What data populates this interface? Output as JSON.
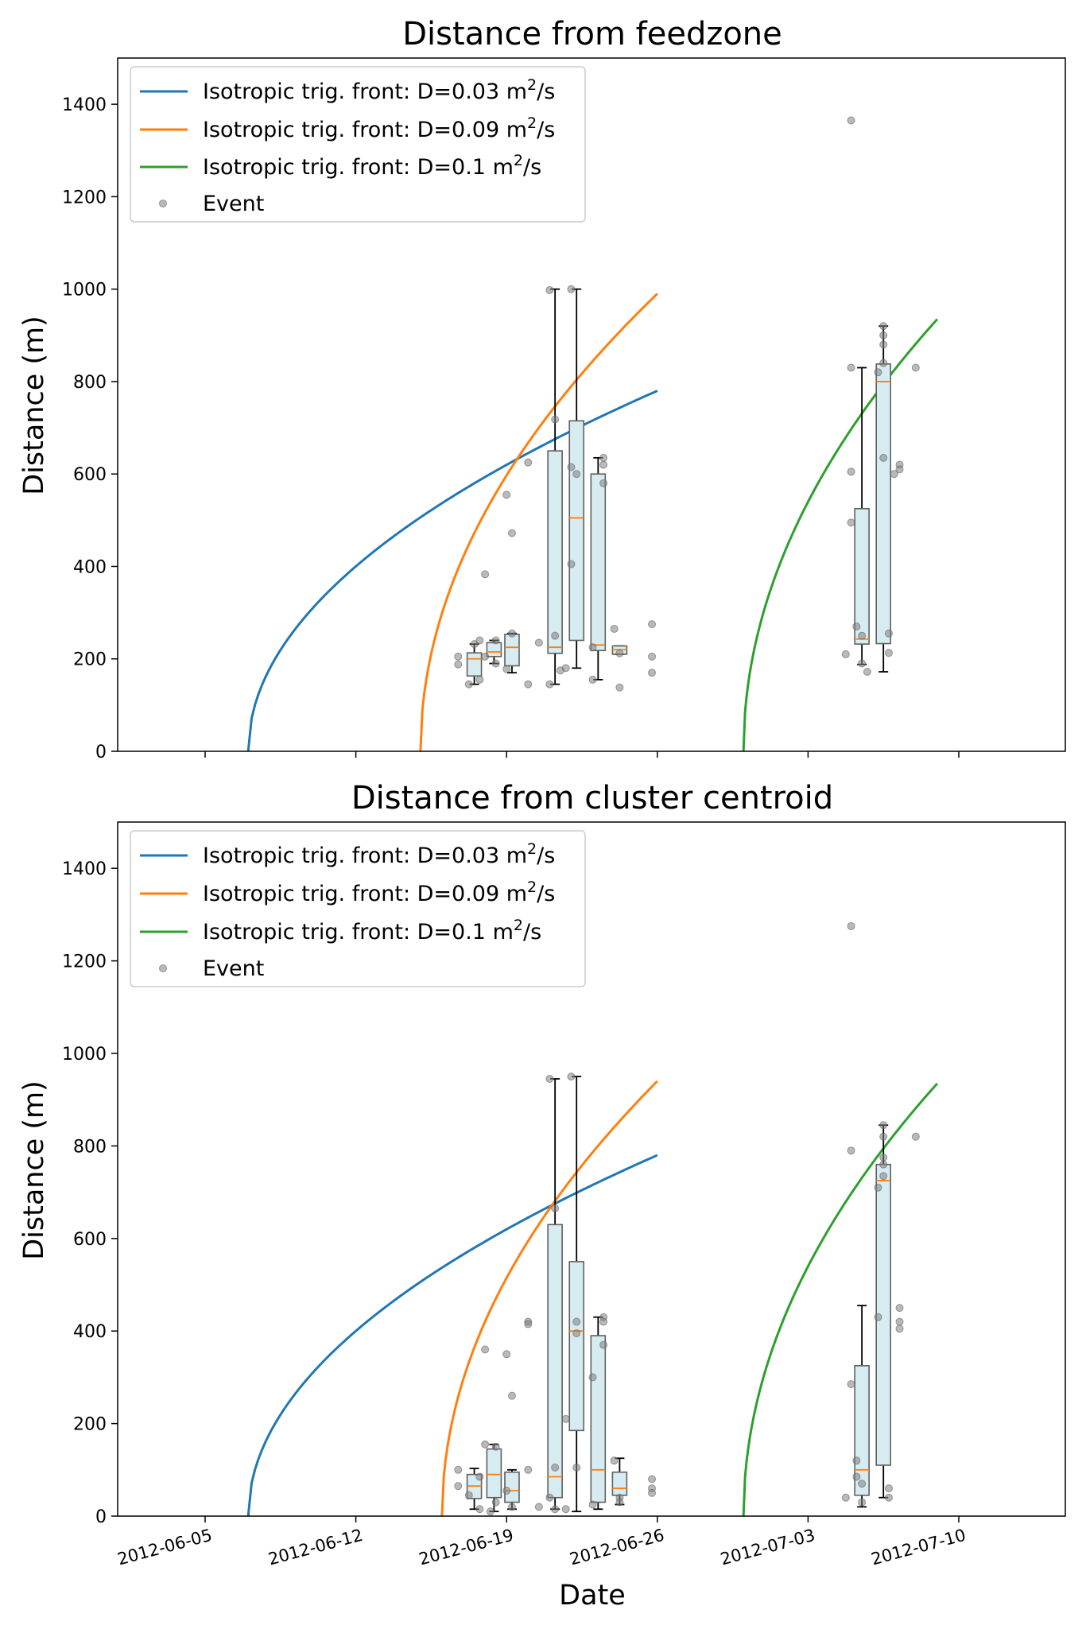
{
  "figure": {
    "xlabel": "Date",
    "x_ticks": [
      "2012-06-05",
      "2012-06-12",
      "2012-06-19",
      "2012-06-26",
      "2012-07-03",
      "2012-07-10"
    ],
    "x_tick_dates": [
      "2012-06-05",
      "2012-06-12",
      "2012-06-19",
      "2012-06-26",
      "2012-07-03",
      "2012-07-10"
    ]
  },
  "chart_data": [
    {
      "type": "line+box+scatter",
      "title": "Distance from feedzone",
      "ylabel": "Distance (m)",
      "xlabel": "",
      "xlim": [
        "2012-06-01",
        "2012-07-15"
      ],
      "ylim": [
        0,
        1500
      ],
      "y_ticks": [
        "0",
        "200",
        "400",
        "600",
        "800",
        "1000",
        "1200",
        "1400"
      ],
      "legend_position": "upper-left",
      "series": [
        {
          "name": "Isotropic trig. front: D=0.03 m²/s",
          "label_main": "Isotropic trig. front: D=0.03 m",
          "label_sup": "2",
          "label_tail": "/s",
          "color": "#1f77b4",
          "start": "2012-06-07",
          "end": "2012-06-26",
          "y_end": 780
        },
        {
          "name": "Isotropic trig. front: D=0.09 m²/s",
          "label_main": "Isotropic trig. front: D=0.09 m",
          "label_sup": "2",
          "label_tail": "/s",
          "color": "#ff7f0e",
          "start": "2012-06-15",
          "end": "2012-06-26",
          "y_end": 990
        },
        {
          "name": "Isotropic trig. front: D=0.1 m²/s",
          "label_main": "Isotropic trig. front: D=0.1 m",
          "label_sup": "2",
          "label_tail": "/s",
          "color": "#2ca02c",
          "start": "2012-06-30",
          "end": "2012-07-09",
          "y_end": 935
        }
      ],
      "event_legend": "Event",
      "event_color": "#808080",
      "boxes": [
        {
          "x": "2012-06-17 12:00",
          "q1": 163,
          "median": 200,
          "q3": 213,
          "whislo": 145,
          "whishi": 232
        },
        {
          "x": "2012-06-18 10:00",
          "q1": 205,
          "median": 215,
          "q3": 235,
          "whislo": 190,
          "whishi": 240
        },
        {
          "x": "2012-06-19 06:00",
          "q1": 185,
          "median": 225,
          "q3": 253,
          "whislo": 170,
          "whishi": 255
        },
        {
          "x": "2012-06-21 06:00",
          "q1": 212,
          "median": 225,
          "q3": 650,
          "whislo": 145,
          "whishi": 1000
        },
        {
          "x": "2012-06-22 06:00",
          "q1": 240,
          "median": 505,
          "q3": 715,
          "whislo": 180,
          "whishi": 1000
        },
        {
          "x": "2012-06-23 06:00",
          "q1": 218,
          "median": 230,
          "q3": 600,
          "whislo": 155,
          "whishi": 635
        },
        {
          "x": "2012-06-24 06:00",
          "q1": 210,
          "median": 220,
          "q3": 228,
          "whislo": 210,
          "whishi": 228
        },
        {
          "x": "2012-07-05 12:00",
          "q1": 232,
          "median": 243,
          "q3": 525,
          "whislo": 188,
          "whishi": 830
        },
        {
          "x": "2012-07-06 12:00",
          "q1": 233,
          "median": 800,
          "q3": 838,
          "whislo": 172,
          "whishi": 920
        }
      ],
      "events": [
        {
          "x": "2012-06-16 18:00",
          "y": 205
        },
        {
          "x": "2012-06-16 18:00",
          "y": 188
        },
        {
          "x": "2012-06-17 06:00",
          "y": 145
        },
        {
          "x": "2012-06-17 12:00",
          "y": 232
        },
        {
          "x": "2012-06-17 18:00",
          "y": 155
        },
        {
          "x": "2012-06-17 18:00",
          "y": 240
        },
        {
          "x": "2012-06-18 00:00",
          "y": 383
        },
        {
          "x": "2012-06-18 00:00",
          "y": 205
        },
        {
          "x": "2012-06-18 12:00",
          "y": 240
        },
        {
          "x": "2012-06-18 12:00",
          "y": 190
        },
        {
          "x": "2012-06-19 00:00",
          "y": 555
        },
        {
          "x": "2012-06-19 00:00",
          "y": 178
        },
        {
          "x": "2012-06-19 06:00",
          "y": 472
        },
        {
          "x": "2012-06-19 06:00",
          "y": 255
        },
        {
          "x": "2012-06-20 00:00",
          "y": 625
        },
        {
          "x": "2012-06-20 00:00",
          "y": 145
        },
        {
          "x": "2012-06-20 12:00",
          "y": 235
        },
        {
          "x": "2012-06-21 00:00",
          "y": 998
        },
        {
          "x": "2012-06-21 06:00",
          "y": 718
        },
        {
          "x": "2012-06-21 06:00",
          "y": 250
        },
        {
          "x": "2012-06-21 00:00",
          "y": 145
        },
        {
          "x": "2012-06-21 12:00",
          "y": 175
        },
        {
          "x": "2012-06-22 00:00",
          "y": 1000
        },
        {
          "x": "2012-06-22 00:00",
          "y": 615
        },
        {
          "x": "2012-06-22 06:00",
          "y": 600
        },
        {
          "x": "2012-06-22 00:00",
          "y": 405
        },
        {
          "x": "2012-06-21 18:00",
          "y": 180
        },
        {
          "x": "2012-06-23 00:00",
          "y": 225
        },
        {
          "x": "2012-06-23 00:00",
          "y": 155
        },
        {
          "x": "2012-06-23 12:00",
          "y": 635
        },
        {
          "x": "2012-06-23 12:00",
          "y": 620
        },
        {
          "x": "2012-06-23 12:00",
          "y": 580
        },
        {
          "x": "2012-06-24 00:00",
          "y": 265
        },
        {
          "x": "2012-06-24 06:00",
          "y": 138
        },
        {
          "x": "2012-06-24 06:00",
          "y": 212
        },
        {
          "x": "2012-06-25 18:00",
          "y": 275
        },
        {
          "x": "2012-06-25 18:00",
          "y": 205
        },
        {
          "x": "2012-06-25 18:00",
          "y": 170
        },
        {
          "x": "2012-07-04 18:00",
          "y": 210
        },
        {
          "x": "2012-07-05 00:00",
          "y": 1365
        },
        {
          "x": "2012-07-05 00:00",
          "y": 830
        },
        {
          "x": "2012-07-05 00:00",
          "y": 605
        },
        {
          "x": "2012-07-05 00:00",
          "y": 495
        },
        {
          "x": "2012-07-05 06:00",
          "y": 270
        },
        {
          "x": "2012-07-05 12:00",
          "y": 250
        },
        {
          "x": "2012-07-05 18:00",
          "y": 172
        },
        {
          "x": "2012-07-05 12:00",
          "y": 190
        },
        {
          "x": "2012-07-06 12:00",
          "y": 920
        },
        {
          "x": "2012-07-06 12:00",
          "y": 900
        },
        {
          "x": "2012-07-06 12:00",
          "y": 880
        },
        {
          "x": "2012-07-06 12:00",
          "y": 840
        },
        {
          "x": "2012-07-06 06:00",
          "y": 820
        },
        {
          "x": "2012-07-06 12:00",
          "y": 635
        },
        {
          "x": "2012-07-06 18:00",
          "y": 255
        },
        {
          "x": "2012-07-06 18:00",
          "y": 213
        },
        {
          "x": "2012-07-07 06:00",
          "y": 620
        },
        {
          "x": "2012-07-07 06:00",
          "y": 610
        },
        {
          "x": "2012-07-07 00:00",
          "y": 600
        },
        {
          "x": "2012-07-08 00:00",
          "y": 830
        }
      ]
    },
    {
      "type": "line+box+scatter",
      "title": "Distance from cluster centroid",
      "ylabel": "Distance (m)",
      "xlabel": "Date",
      "xlim": [
        "2012-06-01",
        "2012-07-15"
      ],
      "ylim": [
        0,
        1500
      ],
      "y_ticks": [
        "0",
        "200",
        "400",
        "600",
        "800",
        "1000",
        "1200",
        "1400"
      ],
      "legend_position": "upper-left",
      "series": [
        {
          "name": "Isotropic trig. front: D=0.03 m²/s",
          "label_main": "Isotropic trig. front: D=0.03 m",
          "label_sup": "2",
          "label_tail": "/s",
          "color": "#1f77b4",
          "start": "2012-06-07",
          "end": "2012-06-26",
          "y_end": 780
        },
        {
          "name": "Isotropic trig. front: D=0.09 m²/s",
          "label_main": "Isotropic trig. front: D=0.09 m",
          "label_sup": "2",
          "label_tail": "/s",
          "color": "#ff7f0e",
          "start": "2012-06-16",
          "end": "2012-06-26",
          "y_end": 940
        },
        {
          "name": "Isotropic trig. front: D=0.1 m²/s",
          "label_main": "Isotropic trig. front: D=0.1 m",
          "label_sup": "2",
          "label_tail": "/s",
          "color": "#2ca02c",
          "start": "2012-06-30",
          "end": "2012-07-09",
          "y_end": 935
        }
      ],
      "event_legend": "Event",
      "event_color": "#808080",
      "boxes": [
        {
          "x": "2012-06-17 12:00",
          "q1": 38,
          "median": 65,
          "q3": 90,
          "whislo": 15,
          "whishi": 103
        },
        {
          "x": "2012-06-18 10:00",
          "q1": 40,
          "median": 90,
          "q3": 145,
          "whislo": 10,
          "whishi": 155
        },
        {
          "x": "2012-06-19 06:00",
          "q1": 30,
          "median": 55,
          "q3": 95,
          "whislo": 15,
          "whishi": 100
        },
        {
          "x": "2012-06-21 06:00",
          "q1": 40,
          "median": 85,
          "q3": 630,
          "whislo": 15,
          "whishi": 945
        },
        {
          "x": "2012-06-22 06:00",
          "q1": 185,
          "median": 400,
          "q3": 550,
          "whislo": 10,
          "whishi": 950
        },
        {
          "x": "2012-06-23 06:00",
          "q1": 30,
          "median": 100,
          "q3": 390,
          "whislo": 15,
          "whishi": 430
        },
        {
          "x": "2012-06-24 06:00",
          "q1": 45,
          "median": 60,
          "q3": 95,
          "whislo": 25,
          "whishi": 125
        },
        {
          "x": "2012-07-05 12:00",
          "q1": 45,
          "median": 100,
          "q3": 325,
          "whislo": 20,
          "whishi": 455
        },
        {
          "x": "2012-07-06 12:00",
          "q1": 110,
          "median": 725,
          "q3": 760,
          "whislo": 40,
          "whishi": 845
        }
      ],
      "events": [
        {
          "x": "2012-06-16 18:00",
          "y": 100
        },
        {
          "x": "2012-06-16 18:00",
          "y": 65
        },
        {
          "x": "2012-06-17 06:00",
          "y": 45
        },
        {
          "x": "2012-06-17 18:00",
          "y": 85
        },
        {
          "x": "2012-06-17 18:00",
          "y": 15
        },
        {
          "x": "2012-06-18 00:00",
          "y": 360
        },
        {
          "x": "2012-06-18 00:00",
          "y": 155
        },
        {
          "x": "2012-06-18 06:00",
          "y": 10
        },
        {
          "x": "2012-06-18 12:00",
          "y": 150
        },
        {
          "x": "2012-06-18 12:00",
          "y": 30
        },
        {
          "x": "2012-06-19 00:00",
          "y": 350
        },
        {
          "x": "2012-06-19 06:00",
          "y": 260
        },
        {
          "x": "2012-06-19 00:00",
          "y": 55
        },
        {
          "x": "2012-06-19 06:00",
          "y": 20
        },
        {
          "x": "2012-06-20 00:00",
          "y": 420
        },
        {
          "x": "2012-06-20 00:00",
          "y": 415
        },
        {
          "x": "2012-06-20 00:00",
          "y": 100
        },
        {
          "x": "2012-06-20 12:00",
          "y": 20
        },
        {
          "x": "2012-06-21 00:00",
          "y": 945
        },
        {
          "x": "2012-06-21 06:00",
          "y": 665
        },
        {
          "x": "2012-06-21 06:00",
          "y": 105
        },
        {
          "x": "2012-06-21 00:00",
          "y": 40
        },
        {
          "x": "2012-06-21 06:00",
          "y": 15
        },
        {
          "x": "2012-06-21 18:00",
          "y": 210
        },
        {
          "x": "2012-06-22 00:00",
          "y": 950
        },
        {
          "x": "2012-06-22 06:00",
          "y": 420
        },
        {
          "x": "2012-06-22 06:00",
          "y": 395
        },
        {
          "x": "2012-06-22 06:00",
          "y": 105
        },
        {
          "x": "2012-06-21 18:00",
          "y": 15
        },
        {
          "x": "2012-06-23 00:00",
          "y": 300
        },
        {
          "x": "2012-06-23 00:00",
          "y": 25
        },
        {
          "x": "2012-06-23 12:00",
          "y": 430
        },
        {
          "x": "2012-06-23 12:00",
          "y": 420
        },
        {
          "x": "2012-06-23 12:00",
          "y": 370
        },
        {
          "x": "2012-06-24 00:00",
          "y": 120
        },
        {
          "x": "2012-06-24 06:00",
          "y": 40
        },
        {
          "x": "2012-06-24 06:00",
          "y": 30
        },
        {
          "x": "2012-06-25 18:00",
          "y": 80
        },
        {
          "x": "2012-06-25 18:00",
          "y": 60
        },
        {
          "x": "2012-06-25 18:00",
          "y": 50
        },
        {
          "x": "2012-07-04 18:00",
          "y": 40
        },
        {
          "x": "2012-07-05 00:00",
          "y": 1275
        },
        {
          "x": "2012-07-05 00:00",
          "y": 790
        },
        {
          "x": "2012-07-05 00:00",
          "y": 285
        },
        {
          "x": "2012-07-05 06:00",
          "y": 120
        },
        {
          "x": "2012-07-05 06:00",
          "y": 85
        },
        {
          "x": "2012-07-05 12:00",
          "y": 70
        },
        {
          "x": "2012-07-05 12:00",
          "y": 30
        },
        {
          "x": "2012-07-06 12:00",
          "y": 845
        },
        {
          "x": "2012-07-06 12:00",
          "y": 820
        },
        {
          "x": "2012-07-06 12:00",
          "y": 775
        },
        {
          "x": "2012-07-06 12:00",
          "y": 760
        },
        {
          "x": "2012-07-06 12:00",
          "y": 735
        },
        {
          "x": "2012-07-06 06:00",
          "y": 710
        },
        {
          "x": "2012-07-06 06:00",
          "y": 430
        },
        {
          "x": "2012-07-06 18:00",
          "y": 60
        },
        {
          "x": "2012-07-06 18:00",
          "y": 40
        },
        {
          "x": "2012-07-07 06:00",
          "y": 450
        },
        {
          "x": "2012-07-07 06:00",
          "y": 420
        },
        {
          "x": "2012-07-07 06:00",
          "y": 405
        },
        {
          "x": "2012-07-08 00:00",
          "y": 820
        }
      ]
    }
  ]
}
